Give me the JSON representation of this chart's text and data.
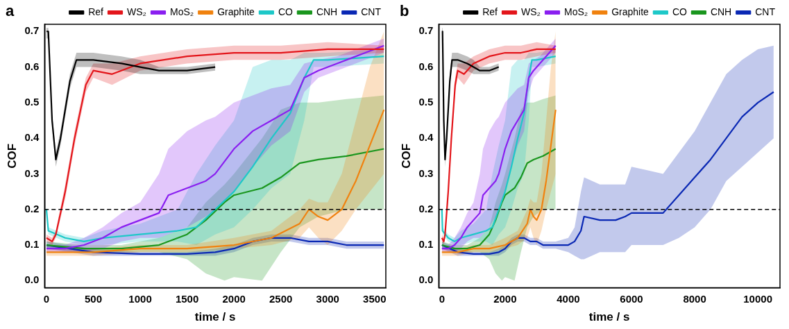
{
  "chart_data": [
    {
      "type": "line",
      "annotations": [
        "a"
      ],
      "xlabel": "time / s",
      "ylabel": "COF",
      "xlim": [
        -20,
        3620
      ],
      "xticks": [
        0,
        500,
        1000,
        1500,
        2000,
        2500,
        3000,
        3500
      ],
      "ylim": [
        -0.02,
        0.72
      ],
      "yticks": [
        {
          "value": 0,
          "label": "0.0"
        },
        0.1,
        0.2,
        0.3,
        0.4,
        0.5,
        0.6,
        0.7
      ],
      "grid": false,
      "legend": "top",
      "marker": "none",
      "line_style": "solid",
      "ref_lines": [
        {
          "axis": "y",
          "value": 0.2,
          "color": "#000000",
          "line_style": "dashed"
        }
      ],
      "series": [
        {
          "name": "Ref",
          "color": "#000000",
          "x": [
            0,
            20,
            60,
            100,
            150,
            250,
            320,
            500,
            800,
            1000,
            1200,
            1500,
            1800
          ],
          "values": [
            0.7,
            0.7,
            0.45,
            0.34,
            0.4,
            0.56,
            0.62,
            0.62,
            0.61,
            0.6,
            0.59,
            0.59,
            0.6
          ],
          "lower": [
            0.68,
            0.68,
            0.43,
            0.32,
            0.38,
            0.54,
            0.6,
            0.6,
            0.59,
            0.58,
            0.58,
            0.58,
            0.59
          ],
          "upper": [
            0.71,
            0.71,
            0.47,
            0.36,
            0.42,
            0.58,
            0.64,
            0.64,
            0.63,
            0.62,
            0.6,
            0.6,
            0.61
          ]
        },
        {
          "name": "WS₂",
          "color": "#e3161b",
          "x": [
            0,
            60,
            100,
            200,
            300,
            420,
            500,
            700,
            1000,
            1500,
            2000,
            2500,
            3000,
            3600
          ],
          "values": [
            0.12,
            0.11,
            0.13,
            0.25,
            0.4,
            0.55,
            0.59,
            0.58,
            0.61,
            0.63,
            0.64,
            0.64,
            0.65,
            0.65
          ],
          "lower": [
            0.11,
            0.1,
            0.12,
            0.23,
            0.38,
            0.53,
            0.57,
            0.55,
            0.59,
            0.61,
            0.62,
            0.62,
            0.63,
            0.64
          ],
          "upper": [
            0.13,
            0.12,
            0.14,
            0.27,
            0.42,
            0.57,
            0.61,
            0.61,
            0.63,
            0.65,
            0.66,
            0.66,
            0.67,
            0.66
          ]
        },
        {
          "name": "MoS₂",
          "color": "#8a1ff0",
          "x": [
            0,
            200,
            400,
            600,
            800,
            1000,
            1200,
            1300,
            1500,
            1700,
            1800,
            2000,
            2200,
            2400,
            2600,
            2750,
            2900,
            3100,
            3400,
            3600
          ],
          "values": [
            0.09,
            0.09,
            0.1,
            0.12,
            0.15,
            0.17,
            0.19,
            0.24,
            0.26,
            0.28,
            0.3,
            0.37,
            0.42,
            0.45,
            0.48,
            0.57,
            0.59,
            0.61,
            0.64,
            0.66
          ],
          "lower": [
            0.08,
            0.08,
            0.08,
            0.09,
            0.11,
            0.12,
            0.12,
            0.13,
            0.15,
            0.18,
            0.2,
            0.25,
            0.32,
            0.38,
            0.42,
            0.53,
            0.57,
            0.59,
            0.62,
            0.64
          ],
          "upper": [
            0.1,
            0.1,
            0.12,
            0.15,
            0.19,
            0.22,
            0.3,
            0.37,
            0.42,
            0.45,
            0.46,
            0.5,
            0.52,
            0.54,
            0.55,
            0.61,
            0.62,
            0.63,
            0.66,
            0.68
          ]
        },
        {
          "name": "Graphite",
          "color": "#f0820f",
          "x": [
            0,
            500,
            1000,
            1500,
            2000,
            2400,
            2700,
            2800,
            2900,
            3000,
            3150,
            3300,
            3450,
            3600
          ],
          "values": [
            0.08,
            0.08,
            0.09,
            0.09,
            0.1,
            0.12,
            0.16,
            0.2,
            0.18,
            0.17,
            0.2,
            0.28,
            0.38,
            0.48
          ],
          "lower": [
            0.07,
            0.07,
            0.08,
            0.08,
            0.09,
            0.1,
            0.12,
            0.15,
            0.12,
            0.1,
            0.14,
            0.2,
            0.25,
            0.3
          ],
          "upper": [
            0.09,
            0.09,
            0.1,
            0.1,
            0.12,
            0.14,
            0.2,
            0.23,
            0.22,
            0.22,
            0.3,
            0.45,
            0.6,
            0.7
          ]
        },
        {
          "name": "CO",
          "color": "#1ec8c8",
          "x": [
            0,
            20,
            200,
            400,
            600,
            1000,
            1400,
            1600,
            1800,
            2000,
            2200,
            2400,
            2600,
            2750,
            2850,
            3000,
            3600
          ],
          "values": [
            0.2,
            0.14,
            0.12,
            0.11,
            0.12,
            0.13,
            0.14,
            0.15,
            0.2,
            0.25,
            0.32,
            0.4,
            0.47,
            0.57,
            0.62,
            0.62,
            0.63
          ],
          "lower": [
            0.19,
            0.13,
            0.11,
            0.1,
            0.1,
            0.11,
            0.11,
            0.1,
            0.13,
            0.15,
            0.2,
            0.26,
            0.3,
            0.45,
            0.6,
            0.6,
            0.61
          ],
          "upper": [
            0.21,
            0.15,
            0.13,
            0.12,
            0.14,
            0.16,
            0.2,
            0.3,
            0.38,
            0.45,
            0.6,
            0.62,
            0.62,
            0.64,
            0.64,
            0.64,
            0.65
          ]
        },
        {
          "name": "CNH",
          "color": "#1a961e",
          "x": [
            0,
            400,
            800,
            1200,
            1500,
            1700,
            1900,
            2000,
            2300,
            2500,
            2700,
            2900,
            3200,
            3600
          ],
          "values": [
            0.1,
            0.09,
            0.09,
            0.1,
            0.13,
            0.17,
            0.22,
            0.24,
            0.26,
            0.29,
            0.33,
            0.34,
            0.35,
            0.37
          ],
          "lower": [
            0.09,
            0.08,
            0.08,
            0.08,
            0.06,
            0.02,
            0.0,
            0.01,
            0.0,
            0.08,
            0.15,
            0.18,
            0.2,
            0.2
          ],
          "upper": [
            0.11,
            0.1,
            0.1,
            0.12,
            0.15,
            0.22,
            0.27,
            0.3,
            0.4,
            0.48,
            0.5,
            0.5,
            0.51,
            0.52
          ]
        },
        {
          "name": "CNT",
          "color": "#0a28b4",
          "x": [
            0,
            500,
            1000,
            1500,
            1800,
            2000,
            2200,
            2400,
            2600,
            2800,
            3000,
            3200,
            3600
          ],
          "values": [
            0.1,
            0.08,
            0.075,
            0.075,
            0.08,
            0.09,
            0.11,
            0.12,
            0.12,
            0.11,
            0.11,
            0.1,
            0.1
          ],
          "lower": [
            0.09,
            0.07,
            0.07,
            0.07,
            0.07,
            0.08,
            0.1,
            0.11,
            0.11,
            0.1,
            0.1,
            0.09,
            0.09
          ],
          "upper": [
            0.11,
            0.09,
            0.08,
            0.08,
            0.09,
            0.1,
            0.12,
            0.13,
            0.13,
            0.12,
            0.12,
            0.11,
            0.11
          ]
        }
      ]
    },
    {
      "type": "line",
      "annotations": [
        "b"
      ],
      "xlabel": "time / s",
      "ylabel": "COF",
      "xlim": [
        -100,
        10700
      ],
      "xticks": [
        0,
        2000,
        4000,
        6000,
        8000,
        10000
      ],
      "ylim": [
        -0.02,
        0.72
      ],
      "yticks": [
        {
          "value": 0,
          "label": "0.0"
        },
        0.1,
        0.2,
        0.3,
        0.4,
        0.5,
        0.6,
        0.7
      ],
      "grid": false,
      "legend": "top",
      "marker": "none",
      "line_style": "solid",
      "ref_lines": [
        {
          "axis": "y",
          "value": 0.2,
          "color": "#000000",
          "line_style": "dashed"
        }
      ],
      "series": [
        {
          "name": "Ref",
          "color": "#000000",
          "x": [
            0,
            20,
            60,
            100,
            150,
            250,
            320,
            500,
            800,
            1000,
            1200,
            1500,
            1800
          ],
          "values": [
            0.7,
            0.7,
            0.45,
            0.34,
            0.4,
            0.56,
            0.62,
            0.62,
            0.61,
            0.6,
            0.59,
            0.59,
            0.6
          ],
          "lower": [
            0.68,
            0.68,
            0.43,
            0.32,
            0.38,
            0.54,
            0.6,
            0.6,
            0.59,
            0.58,
            0.58,
            0.58,
            0.59
          ],
          "upper": [
            0.71,
            0.71,
            0.47,
            0.36,
            0.42,
            0.58,
            0.64,
            0.64,
            0.63,
            0.62,
            0.6,
            0.6,
            0.61
          ]
        },
        {
          "name": "WS₂",
          "color": "#e3161b",
          "x": [
            0,
            60,
            100,
            200,
            300,
            420,
            500,
            700,
            1000,
            1500,
            2000,
            2500,
            3000,
            3600
          ],
          "values": [
            0.12,
            0.11,
            0.13,
            0.25,
            0.4,
            0.55,
            0.59,
            0.58,
            0.61,
            0.63,
            0.64,
            0.64,
            0.65,
            0.65
          ],
          "lower": [
            0.11,
            0.1,
            0.12,
            0.23,
            0.38,
            0.53,
            0.57,
            0.55,
            0.59,
            0.61,
            0.62,
            0.62,
            0.63,
            0.64
          ],
          "upper": [
            0.13,
            0.12,
            0.14,
            0.27,
            0.42,
            0.57,
            0.61,
            0.61,
            0.63,
            0.65,
            0.66,
            0.66,
            0.67,
            0.66
          ]
        },
        {
          "name": "MoS₂",
          "color": "#8a1ff0",
          "x": [
            0,
            200,
            400,
            600,
            800,
            1000,
            1200,
            1300,
            1500,
            1700,
            1800,
            2000,
            2200,
            2400,
            2600,
            2750,
            2900,
            3100,
            3400,
            3600
          ],
          "values": [
            0.09,
            0.09,
            0.1,
            0.12,
            0.15,
            0.17,
            0.19,
            0.24,
            0.26,
            0.28,
            0.3,
            0.37,
            0.42,
            0.45,
            0.48,
            0.57,
            0.59,
            0.61,
            0.64,
            0.66
          ],
          "lower": [
            0.08,
            0.08,
            0.08,
            0.09,
            0.11,
            0.12,
            0.12,
            0.13,
            0.15,
            0.18,
            0.2,
            0.25,
            0.32,
            0.38,
            0.42,
            0.53,
            0.57,
            0.59,
            0.62,
            0.64
          ],
          "upper": [
            0.1,
            0.1,
            0.12,
            0.15,
            0.19,
            0.22,
            0.3,
            0.37,
            0.42,
            0.45,
            0.46,
            0.5,
            0.52,
            0.54,
            0.55,
            0.61,
            0.62,
            0.63,
            0.66,
            0.68
          ]
        },
        {
          "name": "Graphite",
          "color": "#f0820f",
          "x": [
            0,
            500,
            1000,
            1500,
            2000,
            2400,
            2700,
            2800,
            2900,
            3000,
            3150,
            3300,
            3450,
            3600
          ],
          "values": [
            0.08,
            0.08,
            0.09,
            0.09,
            0.1,
            0.12,
            0.16,
            0.2,
            0.18,
            0.17,
            0.2,
            0.28,
            0.38,
            0.48
          ],
          "lower": [
            0.07,
            0.07,
            0.08,
            0.08,
            0.09,
            0.1,
            0.12,
            0.15,
            0.12,
            0.1,
            0.14,
            0.2,
            0.25,
            0.3
          ],
          "upper": [
            0.09,
            0.09,
            0.1,
            0.1,
            0.12,
            0.14,
            0.2,
            0.23,
            0.22,
            0.22,
            0.3,
            0.45,
            0.6,
            0.7
          ]
        },
        {
          "name": "CO",
          "color": "#1ec8c8",
          "x": [
            0,
            20,
            200,
            400,
            600,
            1000,
            1400,
            1600,
            1800,
            2000,
            2200,
            2400,
            2600,
            2750,
            2850,
            3000,
            3600
          ],
          "values": [
            0.2,
            0.14,
            0.12,
            0.11,
            0.12,
            0.13,
            0.14,
            0.15,
            0.2,
            0.25,
            0.32,
            0.4,
            0.47,
            0.57,
            0.62,
            0.62,
            0.63
          ],
          "lower": [
            0.19,
            0.13,
            0.11,
            0.1,
            0.1,
            0.11,
            0.11,
            0.1,
            0.13,
            0.15,
            0.2,
            0.26,
            0.3,
            0.45,
            0.6,
            0.6,
            0.61
          ],
          "upper": [
            0.21,
            0.15,
            0.13,
            0.12,
            0.14,
            0.16,
            0.2,
            0.3,
            0.38,
            0.45,
            0.6,
            0.62,
            0.62,
            0.64,
            0.64,
            0.64,
            0.65
          ]
        },
        {
          "name": "CNH",
          "color": "#1a961e",
          "x": [
            0,
            400,
            800,
            1200,
            1500,
            1700,
            1900,
            2000,
            2300,
            2500,
            2700,
            2900,
            3200,
            3600
          ],
          "values": [
            0.1,
            0.09,
            0.09,
            0.1,
            0.13,
            0.17,
            0.22,
            0.24,
            0.26,
            0.29,
            0.33,
            0.34,
            0.35,
            0.37
          ],
          "lower": [
            0.09,
            0.08,
            0.08,
            0.08,
            0.06,
            0.02,
            0.0,
            0.01,
            0.0,
            0.08,
            0.15,
            0.18,
            0.2,
            0.2
          ],
          "upper": [
            0.11,
            0.1,
            0.1,
            0.12,
            0.15,
            0.22,
            0.27,
            0.3,
            0.4,
            0.48,
            0.5,
            0.5,
            0.51,
            0.52
          ]
        },
        {
          "name": "CNT",
          "color": "#0a28b4",
          "x": [
            0,
            500,
            1000,
            1500,
            1800,
            2000,
            2200,
            2400,
            2600,
            2800,
            3000,
            3200,
            3600,
            4000,
            4200,
            4400,
            4500,
            5000,
            5500,
            5800,
            6000,
            6500,
            7000,
            7500,
            8000,
            8500,
            9000,
            9500,
            10000,
            10500
          ],
          "values": [
            0.1,
            0.08,
            0.075,
            0.075,
            0.08,
            0.09,
            0.11,
            0.12,
            0.12,
            0.11,
            0.11,
            0.1,
            0.1,
            0.1,
            0.11,
            0.14,
            0.18,
            0.17,
            0.17,
            0.18,
            0.19,
            0.19,
            0.19,
            0.24,
            0.29,
            0.34,
            0.4,
            0.46,
            0.5,
            0.53
          ],
          "lower": [
            0.09,
            0.07,
            0.07,
            0.07,
            0.07,
            0.08,
            0.1,
            0.11,
            0.11,
            0.1,
            0.1,
            0.09,
            0.09,
            0.08,
            0.07,
            0.06,
            0.06,
            0.08,
            0.08,
            0.08,
            0.1,
            0.1,
            0.1,
            0.12,
            0.15,
            0.2,
            0.28,
            0.32,
            0.36,
            0.4
          ],
          "upper": [
            0.11,
            0.09,
            0.08,
            0.08,
            0.09,
            0.1,
            0.12,
            0.13,
            0.13,
            0.12,
            0.12,
            0.11,
            0.11,
            0.12,
            0.15,
            0.25,
            0.29,
            0.27,
            0.27,
            0.27,
            0.32,
            0.31,
            0.3,
            0.36,
            0.42,
            0.5,
            0.58,
            0.62,
            0.65,
            0.66
          ]
        }
      ]
    }
  ]
}
